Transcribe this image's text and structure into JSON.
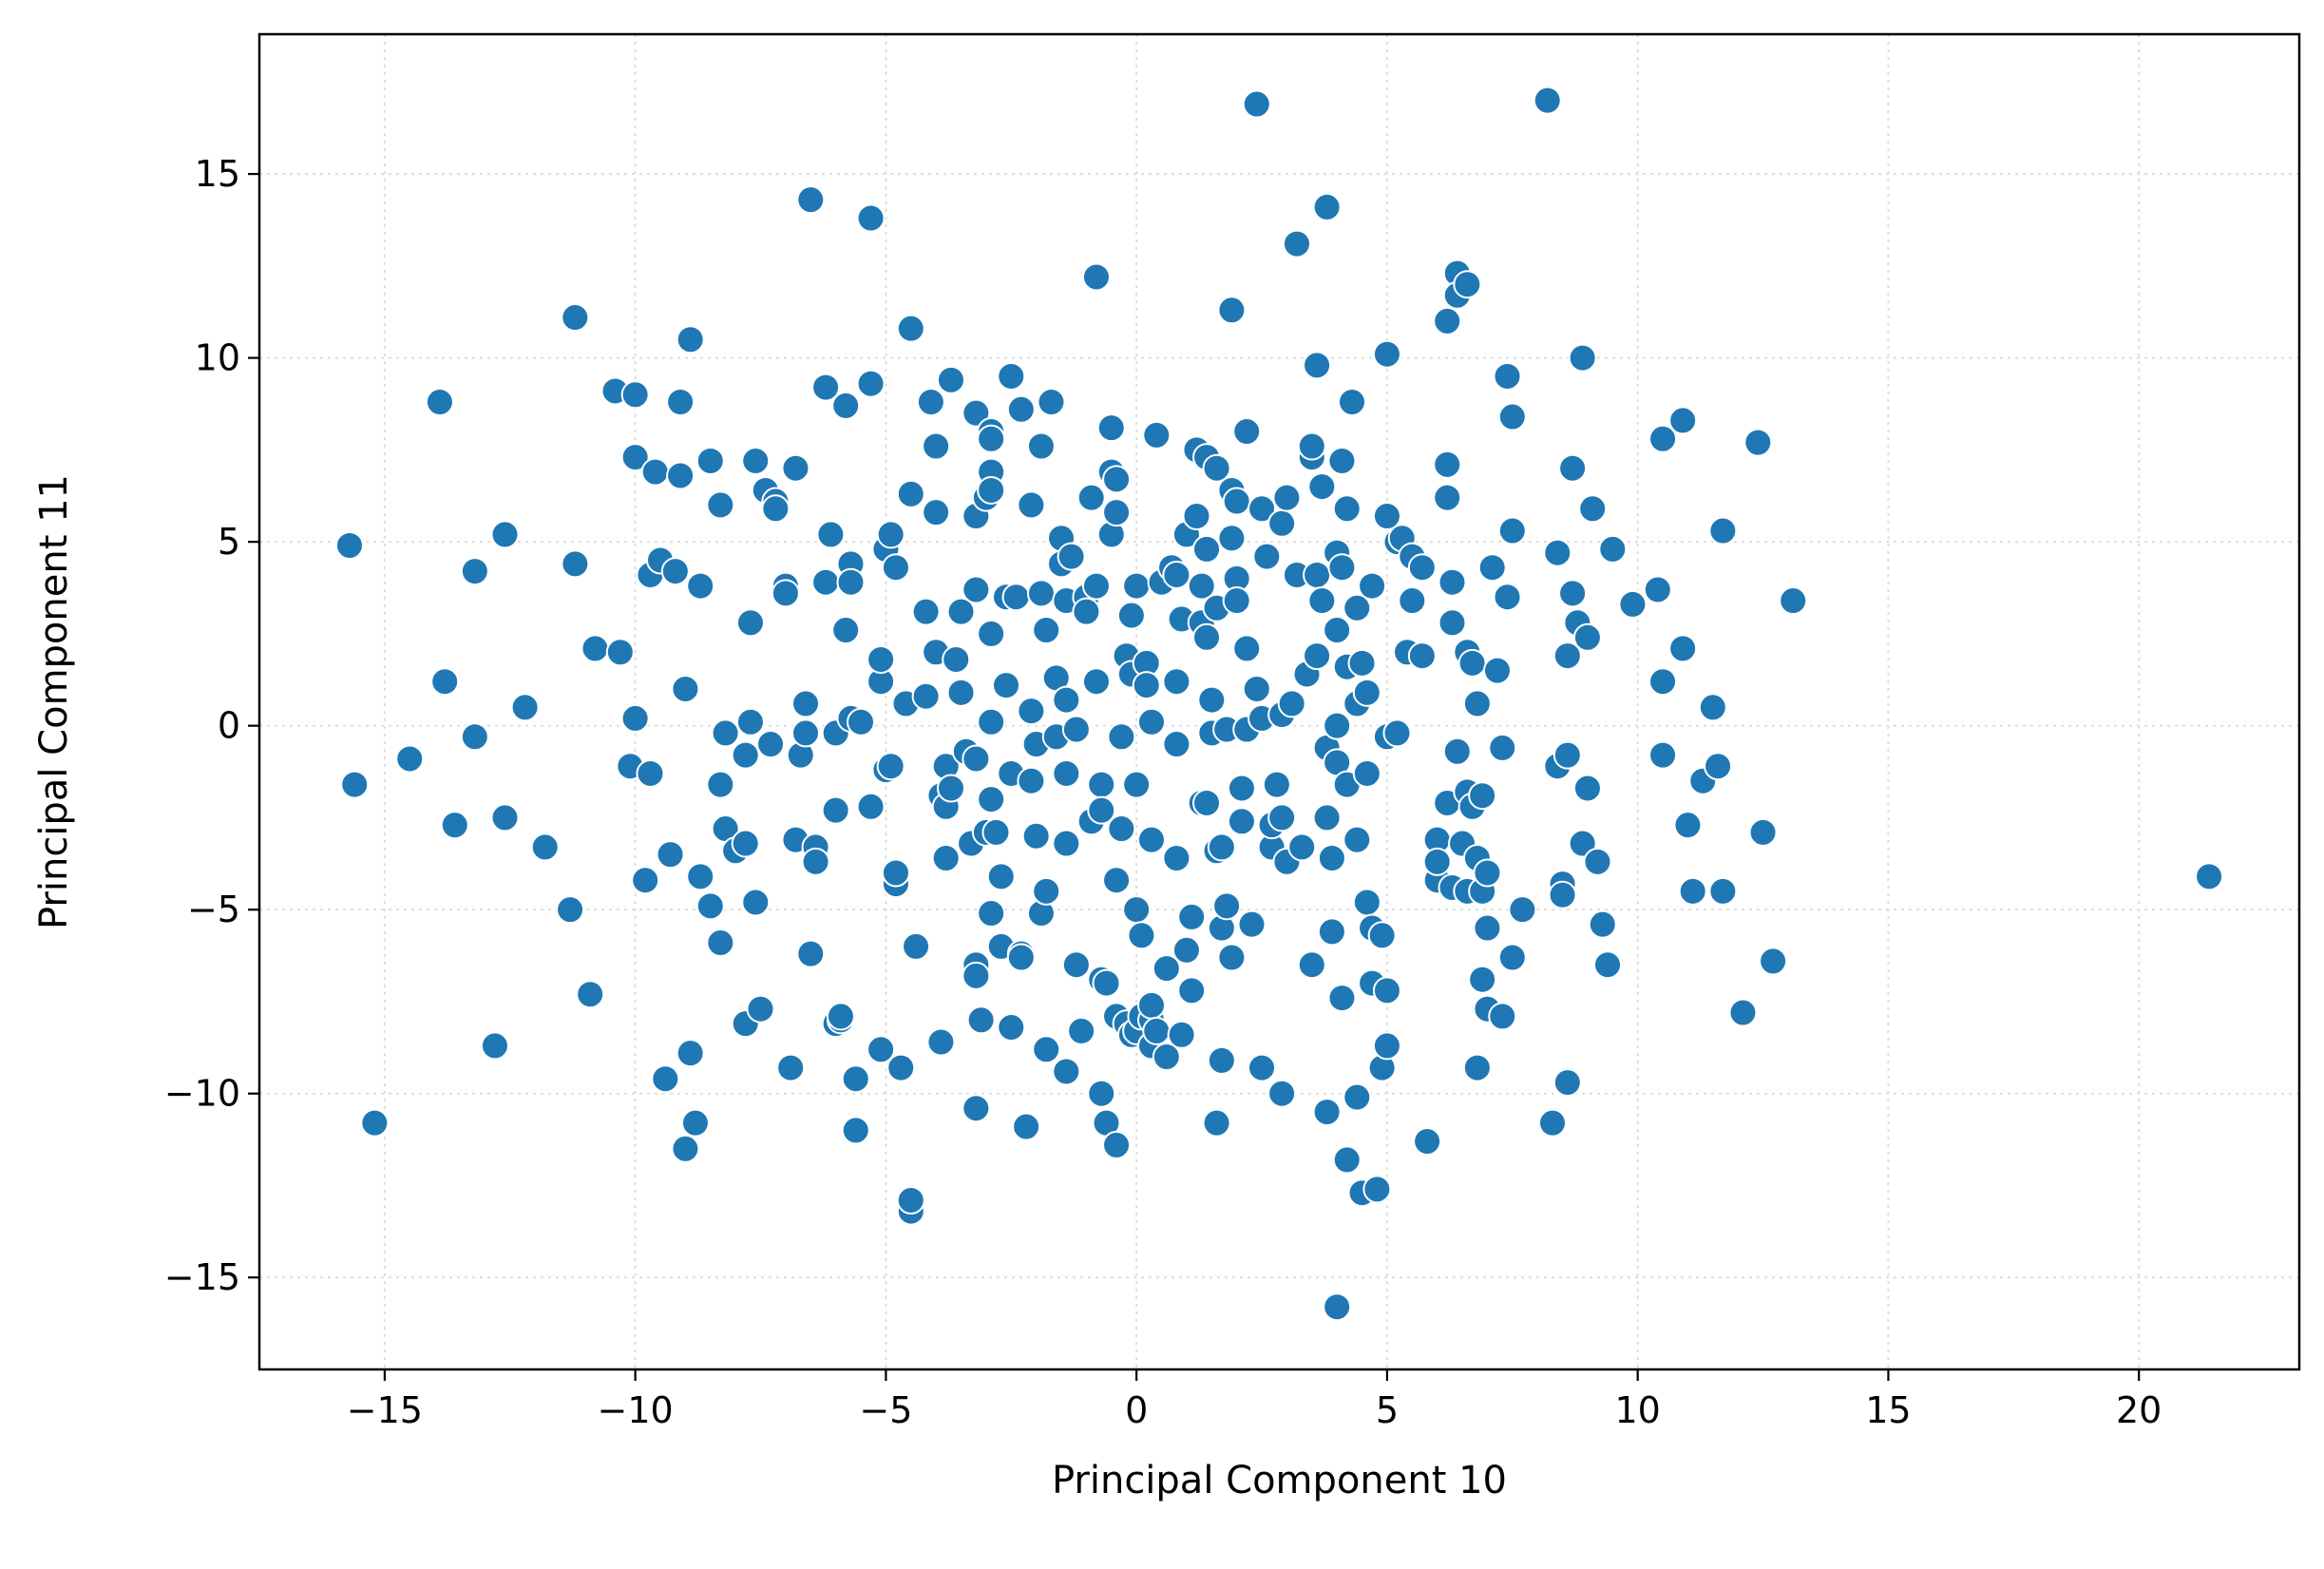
{
  "chart_data": {
    "type": "scatter",
    "title": "",
    "xlabel": "Principal Component 10",
    "ylabel": "Principal Component 11",
    "xlim": [
      -17.5,
      23.2
    ],
    "ylim": [
      -17.5,
      18.8
    ],
    "xticks": [
      -15,
      -10,
      -5,
      0,
      5,
      10,
      15,
      20
    ],
    "yticks": [
      -15,
      -10,
      -5,
      0,
      5,
      10,
      15
    ],
    "xtick_labels": [
      "−15",
      "−10",
      "−5",
      "0",
      "5",
      "10",
      "15",
      "20"
    ],
    "ytick_labels": [
      "−15",
      "−10",
      "−5",
      "0",
      "5",
      "10",
      "15"
    ],
    "grid": true,
    "colors": {
      "marker": "#1f77b4",
      "marker_edge": "#ffffff",
      "grid": "#dddddd",
      "axes": "#000000"
    },
    "points": [
      [
        -15.7,
        4.9
      ],
      [
        -15.6,
        -1.6
      ],
      [
        -15.2,
        -10.8
      ],
      [
        -14.5,
        -0.9
      ],
      [
        -13.9,
        8.8
      ],
      [
        -13.8,
        1.2
      ],
      [
        -13.6,
        -2.7
      ],
      [
        -13.2,
        4.2
      ],
      [
        -13.2,
        -0.3
      ],
      [
        -12.8,
        -8.7
      ],
      [
        -12.6,
        5.2
      ],
      [
        -12.6,
        -2.5
      ],
      [
        -12.2,
        0.5
      ],
      [
        -11.8,
        -3.3
      ],
      [
        -11.3,
        -5.0
      ],
      [
        -11.2,
        11.1
      ],
      [
        -11.2,
        4.4
      ],
      [
        -10.9,
        -7.3
      ],
      [
        -10.8,
        2.1
      ],
      [
        -10.3,
        2.0
      ],
      [
        -10.4,
        9.1
      ],
      [
        -10.0,
        9.0
      ],
      [
        -10.0,
        7.3
      ],
      [
        -10.0,
        0.2
      ],
      [
        -10.1,
        -1.1
      ],
      [
        -9.8,
        -4.2
      ],
      [
        -9.7,
        -1.3
      ],
      [
        -9.7,
        4.1
      ],
      [
        -9.6,
        6.9
      ],
      [
        -9.5,
        4.5
      ],
      [
        -9.4,
        -9.6
      ],
      [
        -9.3,
        -3.5
      ],
      [
        -9.2,
        4.2
      ],
      [
        -9.1,
        8.8
      ],
      [
        -9.1,
        6.8
      ],
      [
        -9.0,
        1.0
      ],
      [
        -9.0,
        -11.5
      ],
      [
        -8.9,
        10.5
      ],
      [
        -8.9,
        -8.9
      ],
      [
        -8.8,
        -10.8
      ],
      [
        -8.7,
        3.8
      ],
      [
        -8.7,
        -4.1
      ],
      [
        -8.5,
        7.2
      ],
      [
        -8.5,
        -4.9
      ],
      [
        -8.3,
        6.0
      ],
      [
        -8.3,
        -5.9
      ],
      [
        -8.3,
        -1.6
      ],
      [
        -8.2,
        -0.2
      ],
      [
        -8.2,
        -2.8
      ],
      [
        -8.0,
        -3.4
      ],
      [
        -7.8,
        -0.8
      ],
      [
        -7.8,
        -3.2
      ],
      [
        -7.8,
        -8.1
      ],
      [
        -7.7,
        2.8
      ],
      [
        -7.7,
        0.1
      ],
      [
        -7.6,
        7.2
      ],
      [
        -7.6,
        -4.8
      ],
      [
        -7.5,
        -7.7
      ],
      [
        -7.4,
        6.4
      ],
      [
        -7.3,
        -0.5
      ],
      [
        -7.2,
        6.1
      ],
      [
        -7.2,
        5.9
      ],
      [
        -7.0,
        3.8
      ],
      [
        -7.0,
        3.6
      ],
      [
        -6.9,
        -9.3
      ],
      [
        -6.8,
        -3.1
      ],
      [
        -6.8,
        7.0
      ],
      [
        -6.7,
        -0.8
      ],
      [
        -6.6,
        -0.2
      ],
      [
        -6.6,
        0.6
      ],
      [
        -6.5,
        14.3
      ],
      [
        -6.5,
        -6.2
      ],
      [
        -6.4,
        -3.3
      ],
      [
        -6.4,
        -3.7
      ],
      [
        -6.2,
        9.2
      ],
      [
        -6.2,
        3.9
      ],
      [
        -6.1,
        5.2
      ],
      [
        -6.0,
        -0.2
      ],
      [
        -6.0,
        -2.3
      ],
      [
        -6.0,
        -8.1
      ],
      [
        -5.9,
        -8.0
      ],
      [
        -5.9,
        -7.9
      ],
      [
        -5.8,
        2.6
      ],
      [
        -5.8,
        8.7
      ],
      [
        -5.7,
        4.4
      ],
      [
        -5.7,
        3.9
      ],
      [
        -5.7,
        0.2
      ],
      [
        -5.6,
        -9.6
      ],
      [
        -5.6,
        -11.0
      ],
      [
        -5.5,
        0.1
      ],
      [
        -5.3,
        13.8
      ],
      [
        -5.3,
        9.3
      ],
      [
        -5.3,
        -2.2
      ],
      [
        -5.1,
        1.2
      ],
      [
        -5.1,
        1.8
      ],
      [
        -5.1,
        -8.8
      ],
      [
        -5.0,
        4.8
      ],
      [
        -5.0,
        -1.2
      ],
      [
        -4.9,
        5.2
      ],
      [
        -4.9,
        -1.1
      ],
      [
        -4.8,
        4.3
      ],
      [
        -4.8,
        -4.3
      ],
      [
        -4.8,
        -4.0
      ],
      [
        -4.7,
        -9.3
      ],
      [
        -4.6,
        0.6
      ],
      [
        -4.5,
        10.8
      ],
      [
        -4.5,
        6.3
      ],
      [
        -4.5,
        -13.2
      ],
      [
        -4.5,
        -12.9
      ],
      [
        -4.4,
        -6.0
      ],
      [
        -4.2,
        3.1
      ],
      [
        -4.2,
        0.8
      ],
      [
        -4.1,
        8.8
      ],
      [
        -4.0,
        5.8
      ],
      [
        -4.0,
        2.0
      ],
      [
        -4.0,
        7.6
      ],
      [
        -3.9,
        -8.6
      ],
      [
        -3.9,
        -1.9
      ],
      [
        -3.8,
        -1.1
      ],
      [
        -3.8,
        -2.2
      ],
      [
        -3.8,
        -3.6
      ],
      [
        -3.7,
        9.4
      ],
      [
        -3.7,
        -1.7
      ],
      [
        -3.6,
        1.8
      ],
      [
        -3.5,
        3.1
      ],
      [
        -3.5,
        0.9
      ],
      [
        -3.4,
        -0.7
      ],
      [
        -3.3,
        -3.2
      ],
      [
        -3.2,
        3.7
      ],
      [
        -3.2,
        8.5
      ],
      [
        -3.2,
        5.7
      ],
      [
        -3.2,
        -0.9
      ],
      [
        -3.2,
        -6.5
      ],
      [
        -3.2,
        -6.8
      ],
      [
        -3.2,
        -10.4
      ],
      [
        -3.1,
        -8.0
      ],
      [
        -3.0,
        6.2
      ],
      [
        -3.0,
        -2.9
      ],
      [
        -2.9,
        8.0
      ],
      [
        -2.9,
        7.8
      ],
      [
        -2.9,
        6.9
      ],
      [
        -2.9,
        6.4
      ],
      [
        -2.9,
        2.5
      ],
      [
        -2.9,
        0.1
      ],
      [
        -2.9,
        -2.0
      ],
      [
        -2.9,
        -5.1
      ],
      [
        -2.8,
        -2.9
      ],
      [
        -2.7,
        -4.1
      ],
      [
        -2.7,
        -6.0
      ],
      [
        -2.6,
        3.5
      ],
      [
        -2.6,
        1.1
      ],
      [
        -2.5,
        9.5
      ],
      [
        -2.5,
        -1.3
      ],
      [
        -2.5,
        -8.2
      ],
      [
        -2.4,
        3.5
      ],
      [
        -2.3,
        8.6
      ],
      [
        -2.3,
        -6.2
      ],
      [
        -2.3,
        -6.3
      ],
      [
        -2.2,
        -10.9
      ],
      [
        -2.1,
        -1.5
      ],
      [
        -2.1,
        6.0
      ],
      [
        -2.1,
        0.4
      ],
      [
        -2.0,
        -3.0
      ],
      [
        -2.0,
        -0.5
      ],
      [
        -1.9,
        7.6
      ],
      [
        -1.9,
        3.6
      ],
      [
        -1.9,
        -5.1
      ],
      [
        -1.8,
        -4.5
      ],
      [
        -1.8,
        -8.8
      ],
      [
        -1.8,
        2.6
      ],
      [
        -1.7,
        8.8
      ],
      [
        -1.6,
        -0.3
      ],
      [
        -1.6,
        1.3
      ],
      [
        -1.5,
        4.4
      ],
      [
        -1.5,
        5.1
      ],
      [
        -1.4,
        3.4
      ],
      [
        -1.4,
        0.7
      ],
      [
        -1.4,
        -1.3
      ],
      [
        -1.4,
        -3.2
      ],
      [
        -1.4,
        -9.4
      ],
      [
        -1.3,
        4.6
      ],
      [
        -1.2,
        -0.1
      ],
      [
        -1.2,
        -6.5
      ],
      [
        -1.1,
        -8.3
      ],
      [
        -1.0,
        3.5
      ],
      [
        -1.0,
        3.1
      ],
      [
        -0.9,
        6.2
      ],
      [
        -0.9,
        -2.6
      ],
      [
        -0.8,
        12.2
      ],
      [
        -0.8,
        3.8
      ],
      [
        -0.8,
        1.2
      ],
      [
        -0.7,
        -1.6
      ],
      [
        -0.7,
        -2.3
      ],
      [
        -0.7,
        -6.9
      ],
      [
        -0.7,
        -10.0
      ],
      [
        -0.6,
        -10.8
      ],
      [
        -0.6,
        -7.0
      ],
      [
        -0.5,
        8.1
      ],
      [
        -0.5,
        6.9
      ],
      [
        -0.5,
        5.2
      ],
      [
        -0.4,
        6.7
      ],
      [
        -0.4,
        5.8
      ],
      [
        -0.4,
        -7.9
      ],
      [
        -0.4,
        -11.4
      ],
      [
        -0.4,
        -4.2
      ],
      [
        -0.3,
        -2.8
      ],
      [
        -0.3,
        -0.3
      ],
      [
        -0.2,
        1.9
      ],
      [
        -0.2,
        -8.1
      ],
      [
        -0.1,
        3.0
      ],
      [
        -0.1,
        1.4
      ],
      [
        -0.1,
        -8.4
      ],
      [
        0.0,
        3.8
      ],
      [
        0.0,
        -1.6
      ],
      [
        0.0,
        -5.0
      ],
      [
        0.0,
        -8.3
      ],
      [
        0.1,
        -5.7
      ],
      [
        0.1,
        -7.9
      ],
      [
        0.2,
        1.7
      ],
      [
        0.2,
        1.1
      ],
      [
        0.3,
        0.1
      ],
      [
        0.3,
        -3.1
      ],
      [
        0.3,
        -8.0
      ],
      [
        0.3,
        -8.7
      ],
      [
        0.3,
        -7.6
      ],
      [
        0.4,
        7.9
      ],
      [
        0.4,
        -8.3
      ],
      [
        0.5,
        3.9
      ],
      [
        0.6,
        -9.0
      ],
      [
        0.6,
        -6.6
      ],
      [
        0.7,
        4.3
      ],
      [
        0.8,
        4.1
      ],
      [
        0.8,
        1.2
      ],
      [
        0.8,
        -0.5
      ],
      [
        0.8,
        -3.6
      ],
      [
        0.9,
        -8.4
      ],
      [
        0.9,
        2.9
      ],
      [
        1.0,
        5.2
      ],
      [
        1.0,
        -6.1
      ],
      [
        1.1,
        -7.2
      ],
      [
        1.1,
        -5.2
      ],
      [
        1.2,
        7.5
      ],
      [
        1.2,
        5.7
      ],
      [
        1.3,
        3.8
      ],
      [
        1.3,
        2.8
      ],
      [
        1.3,
        -2.1
      ],
      [
        1.4,
        7.3
      ],
      [
        1.4,
        4.8
      ],
      [
        1.4,
        2.4
      ],
      [
        1.4,
        -2.1
      ],
      [
        1.5,
        0.7
      ],
      [
        1.5,
        -0.2
      ],
      [
        1.6,
        7.0
      ],
      [
        1.6,
        3.2
      ],
      [
        1.6,
        -3.4
      ],
      [
        1.6,
        -10.8
      ],
      [
        1.7,
        -5.5
      ],
      [
        1.7,
        -3.3
      ],
      [
        1.7,
        -9.1
      ],
      [
        1.8,
        -4.9
      ],
      [
        1.8,
        -0.1
      ],
      [
        1.9,
        11.3
      ],
      [
        1.9,
        6.4
      ],
      [
        1.9,
        5.1
      ],
      [
        1.9,
        -6.3
      ],
      [
        2.0,
        6.1
      ],
      [
        2.0,
        4.0
      ],
      [
        2.0,
        3.4
      ],
      [
        2.1,
        -1.7
      ],
      [
        2.1,
        -2.6
      ],
      [
        2.2,
        8.0
      ],
      [
        2.2,
        2.1
      ],
      [
        2.2,
        -0.1
      ],
      [
        2.3,
        -5.4
      ],
      [
        2.4,
        16.9
      ],
      [
        2.4,
        1.0
      ],
      [
        2.5,
        5.9
      ],
      [
        2.5,
        0.2
      ],
      [
        2.5,
        -9.3
      ],
      [
        2.6,
        4.6
      ],
      [
        2.7,
        -3.3
      ],
      [
        2.7,
        -2.7
      ],
      [
        2.8,
        -1.6
      ],
      [
        2.9,
        5.5
      ],
      [
        2.9,
        0.3
      ],
      [
        2.9,
        -2.5
      ],
      [
        2.9,
        -10.0
      ],
      [
        3.0,
        6.2
      ],
      [
        3.0,
        -3.7
      ],
      [
        3.1,
        0.6
      ],
      [
        3.2,
        4.1
      ],
      [
        3.2,
        13.1
      ],
      [
        3.3,
        -3.3
      ],
      [
        3.4,
        1.4
      ],
      [
        3.5,
        7.3
      ],
      [
        3.5,
        7.6
      ],
      [
        3.5,
        -6.5
      ],
      [
        3.6,
        9.8
      ],
      [
        3.6,
        4.1
      ],
      [
        3.6,
        1.9
      ],
      [
        3.7,
        6.5
      ],
      [
        3.7,
        3.4
      ],
      [
        3.8,
        14.1
      ],
      [
        3.8,
        -0.6
      ],
      [
        3.8,
        -2.5
      ],
      [
        3.8,
        -10.5
      ],
      [
        3.9,
        -5.6
      ],
      [
        3.9,
        -3.6
      ],
      [
        4.0,
        4.7
      ],
      [
        4.0,
        2.6
      ],
      [
        4.0,
        0.0
      ],
      [
        4.0,
        -1.0
      ],
      [
        4.0,
        -15.8
      ],
      [
        4.1,
        7.2
      ],
      [
        4.1,
        4.3
      ],
      [
        4.1,
        -7.4
      ],
      [
        4.2,
        5.9
      ],
      [
        4.2,
        1.6
      ],
      [
        4.2,
        -1.6
      ],
      [
        4.2,
        -11.8
      ],
      [
        4.3,
        8.8
      ],
      [
        4.4,
        3.2
      ],
      [
        4.4,
        0.6
      ],
      [
        4.4,
        -3.1
      ],
      [
        4.4,
        -10.1
      ],
      [
        4.5,
        1.7
      ],
      [
        4.5,
        -12.7
      ],
      [
        4.6,
        0.9
      ],
      [
        4.6,
        -1.3
      ],
      [
        4.6,
        -4.8
      ],
      [
        4.7,
        3.8
      ],
      [
        4.7,
        -5.5
      ],
      [
        4.7,
        -7.0
      ],
      [
        4.8,
        -12.6
      ],
      [
        4.9,
        -5.7
      ],
      [
        4.9,
        -9.3
      ],
      [
        5.0,
        10.1
      ],
      [
        5.0,
        5.7
      ],
      [
        5.0,
        -0.3
      ],
      [
        5.0,
        -7.2
      ],
      [
        5.0,
        -8.7
      ],
      [
        5.2,
        5.0
      ],
      [
        5.2,
        -0.2
      ],
      [
        5.3,
        5.1
      ],
      [
        5.4,
        2.0
      ],
      [
        5.5,
        4.6
      ],
      [
        5.5,
        3.4
      ],
      [
        5.7,
        4.3
      ],
      [
        5.7,
        1.9
      ],
      [
        5.8,
        -11.3
      ],
      [
        6.0,
        -3.1
      ],
      [
        6.0,
        -4.2
      ],
      [
        6.0,
        -3.7
      ],
      [
        6.2,
        7.1
      ],
      [
        6.2,
        6.2
      ],
      [
        6.2,
        11.0
      ],
      [
        6.2,
        -2.1
      ],
      [
        6.3,
        3.9
      ],
      [
        6.3,
        2.8
      ],
      [
        6.3,
        -4.4
      ],
      [
        6.4,
        12.3
      ],
      [
        6.4,
        11.7
      ],
      [
        6.4,
        -0.7
      ],
      [
        6.5,
        -3.2
      ],
      [
        6.6,
        12.0
      ],
      [
        6.6,
        2.0
      ],
      [
        6.6,
        -1.8
      ],
      [
        6.6,
        -4.5
      ],
      [
        6.7,
        1.7
      ],
      [
        6.7,
        -2.2
      ],
      [
        6.8,
        -3.6
      ],
      [
        6.8,
        0.6
      ],
      [
        6.8,
        -9.3
      ],
      [
        6.9,
        -6.9
      ],
      [
        6.9,
        -4.5
      ],
      [
        6.9,
        -1.9
      ],
      [
        7.0,
        -7.7
      ],
      [
        7.0,
        -5.5
      ],
      [
        7.0,
        -4.0
      ],
      [
        7.1,
        4.3
      ],
      [
        7.2,
        1.5
      ],
      [
        7.3,
        -0.6
      ],
      [
        7.3,
        -7.9
      ],
      [
        7.4,
        9.5
      ],
      [
        7.4,
        3.5
      ],
      [
        7.5,
        8.4
      ],
      [
        7.5,
        5.3
      ],
      [
        7.5,
        -6.3
      ],
      [
        7.7,
        -5.0
      ],
      [
        8.2,
        17.0
      ],
      [
        8.3,
        -10.8
      ],
      [
        8.4,
        4.7
      ],
      [
        8.4,
        -1.1
      ],
      [
        8.5,
        -4.3
      ],
      [
        8.5,
        -4.6
      ],
      [
        8.6,
        -0.8
      ],
      [
        8.6,
        -9.7
      ],
      [
        8.6,
        1.9
      ],
      [
        8.7,
        3.6
      ],
      [
        8.7,
        7.0
      ],
      [
        8.8,
        2.8
      ],
      [
        8.9,
        10.0
      ],
      [
        8.9,
        -3.2
      ],
      [
        9.0,
        2.4
      ],
      [
        9.0,
        -1.7
      ],
      [
        9.1,
        5.9
      ],
      [
        9.2,
        -3.7
      ],
      [
        9.3,
        -5.4
      ],
      [
        9.4,
        -6.5
      ],
      [
        9.5,
        4.8
      ],
      [
        9.9,
        3.3
      ],
      [
        10.4,
        3.7
      ],
      [
        10.5,
        7.8
      ],
      [
        10.5,
        1.2
      ],
      [
        10.5,
        -0.8
      ],
      [
        10.9,
        8.3
      ],
      [
        10.9,
        2.1
      ],
      [
        11.0,
        -2.7
      ],
      [
        11.1,
        -4.5
      ],
      [
        11.3,
        -1.5
      ],
      [
        11.5,
        0.5
      ],
      [
        11.6,
        -1.1
      ],
      [
        11.7,
        5.3
      ],
      [
        11.7,
        -4.5
      ],
      [
        12.1,
        -7.8
      ],
      [
        12.4,
        7.7
      ],
      [
        12.5,
        -2.9
      ],
      [
        12.7,
        -6.4
      ],
      [
        13.1,
        3.4
      ],
      [
        21.4,
        -4.1
      ]
    ]
  }
}
